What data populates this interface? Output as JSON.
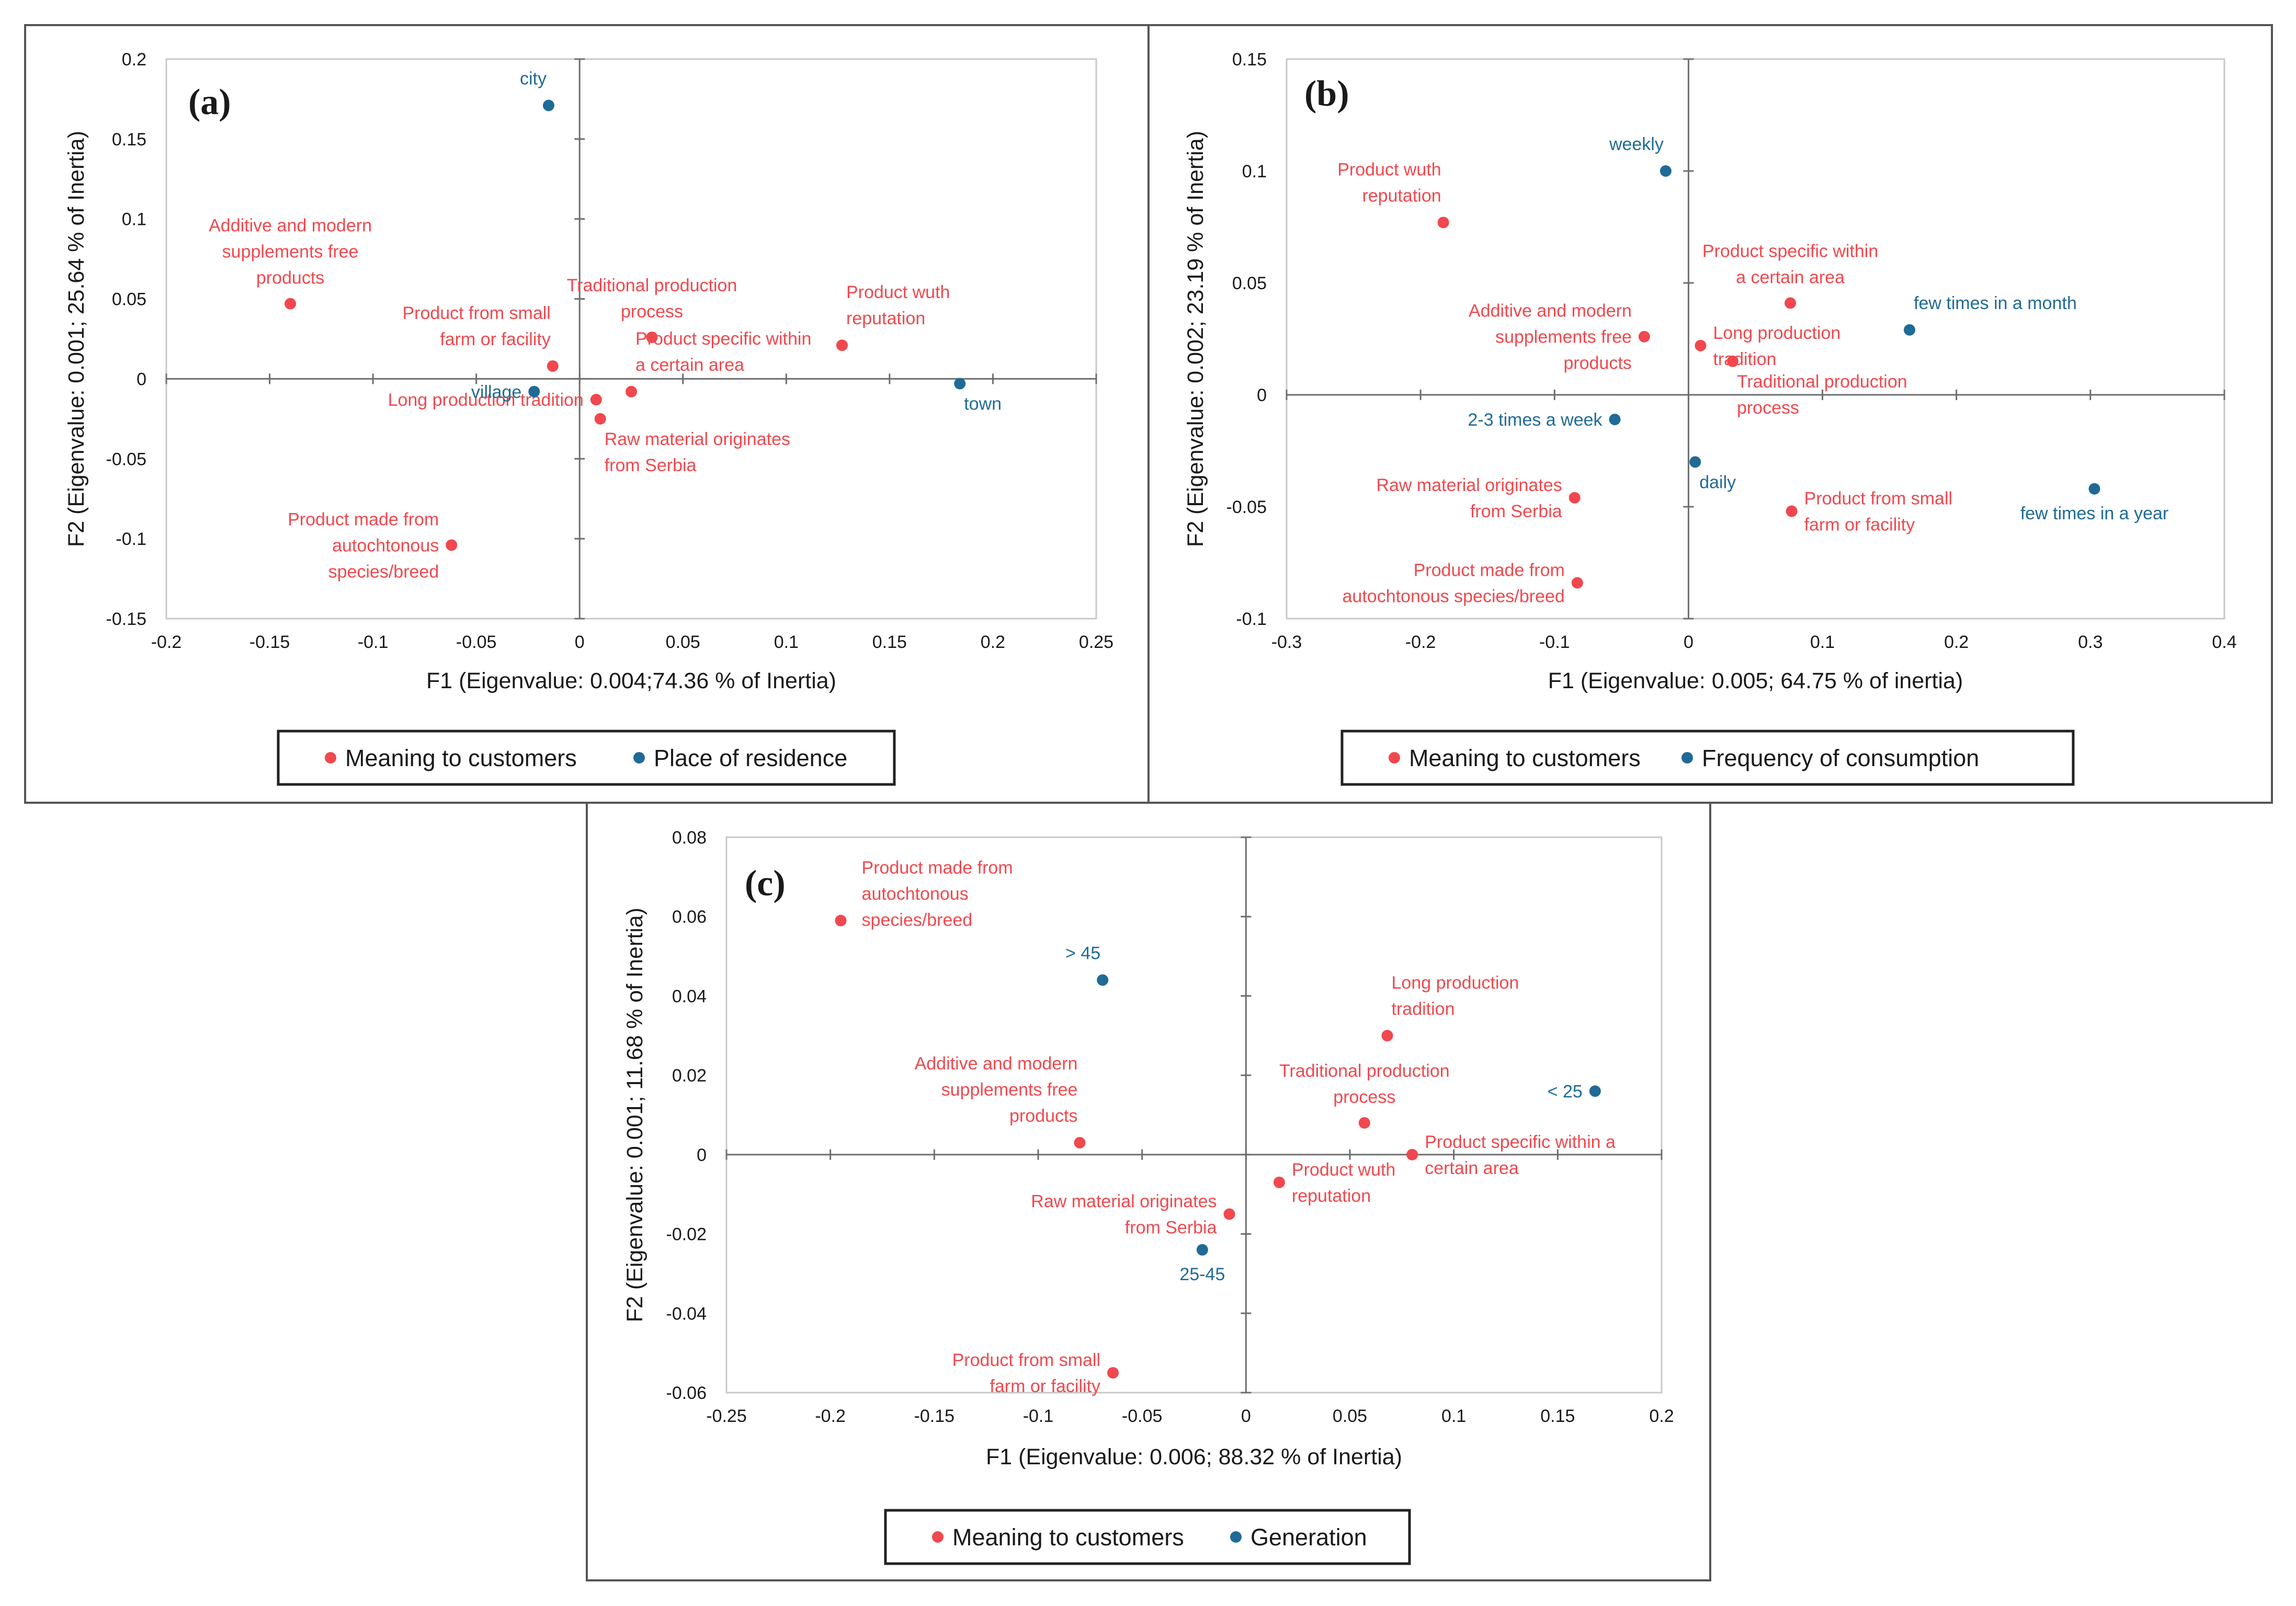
{
  "colors": {
    "meaning": "#f0484e",
    "group": "#1f6b96"
  },
  "chart_data": [
    {
      "type": "scatter",
      "panel": "(a)",
      "xlabel": "F1 (Eigenvalue: 0.004;74.36 % of Inertia)",
      "ylabel": "F2 (Eigenvalue: 0.001; 25.64 % of Inertia)",
      "xlim": [
        -0.2,
        0.25
      ],
      "ylim": [
        -0.15,
        0.2
      ],
      "xticks": [
        -0.2,
        -0.15,
        -0.1,
        -0.05,
        0,
        0.05,
        0.1,
        0.15,
        0.2,
        0.25
      ],
      "xtick_labels": [
        "-0.2",
        "-0.15",
        "-0.1",
        "-0.05",
        "0",
        "0.05",
        "0.1",
        "0.15",
        "0.2",
        "0.25"
      ],
      "yticks": [
        -0.15,
        -0.1,
        -0.05,
        0,
        0.05,
        0.1,
        0.15,
        0.2
      ],
      "ytick_labels": [
        "-0.15",
        "-0.1",
        "-0.05",
        "0",
        "0.05",
        "0.1",
        "0.15",
        "0.2"
      ],
      "legend": [
        "Meaning to customers",
        "Place of residence"
      ],
      "series": [
        {
          "name": "Meaning to customers",
          "points": [
            {
              "x": -0.14,
              "y": 0.047,
              "label": [
                "Additive and modern",
                "supplements free",
                "products"
              ],
              "pos": "above"
            },
            {
              "x": -0.013,
              "y": 0.008,
              "label": [
                "Product from small",
                "farm or facility"
              ],
              "pos": "above-left"
            },
            {
              "x": 0.008,
              "y": -0.013,
              "label": [
                "Long production tradition"
              ],
              "pos": "left"
            },
            {
              "x": 0.035,
              "y": 0.026,
              "label": [
                "Traditional production",
                "process"
              ],
              "pos": "above"
            },
            {
              "x": 0.025,
              "y": -0.008,
              "label": [
                "Product specific within",
                "a certain area"
              ],
              "pos": "above-right"
            },
            {
              "x": 0.01,
              "y": -0.025,
              "label": [
                "Raw material originates",
                "from Serbia"
              ],
              "pos": "below-right"
            },
            {
              "x": 0.127,
              "y": 0.021,
              "label": [
                "Product wuth",
                "reputation"
              ],
              "pos": "above-right"
            },
            {
              "x": -0.062,
              "y": -0.104,
              "label": [
                "Product made from",
                "autochtonous",
                "species/breed"
              ],
              "pos": "left-block"
            }
          ]
        },
        {
          "name": "Place of residence",
          "points": [
            {
              "x": -0.015,
              "y": 0.171,
              "label": [
                "city"
              ],
              "pos": "above-left"
            },
            {
              "x": -0.022,
              "y": -0.008,
              "label": [
                "village"
              ],
              "pos": "left"
            },
            {
              "x": 0.184,
              "y": -0.003,
              "label": [
                "town"
              ],
              "pos": "below-right"
            }
          ]
        }
      ]
    },
    {
      "type": "scatter",
      "panel": "(b)",
      "xlabel": "F1 (Eigenvalue:  0.005; 64.75 % of inertia)",
      "ylabel": "F2 (Eigenvalue: 0.002; 23.19 % of Inertia)",
      "xlim": [
        -0.3,
        0.4
      ],
      "ylim": [
        -0.1,
        0.15
      ],
      "xticks": [
        -0.3,
        -0.2,
        -0.1,
        0,
        0.1,
        0.2,
        0.3,
        0.4
      ],
      "xtick_labels": [
        "-0.3",
        "-0.2",
        "-0.1",
        "0",
        "0.1",
        "0.2",
        "0.3",
        "0.4"
      ],
      "yticks": [
        -0.1,
        -0.05,
        0,
        0.05,
        0.1,
        0.15
      ],
      "ytick_labels": [
        "-0.1",
        "-0.05",
        "0",
        "0.05",
        "0.1",
        "0.15"
      ],
      "legend": [
        "Meaning to customers",
        "Frequency of consumption"
      ],
      "series": [
        {
          "name": "Meaning to customers",
          "points": [
            {
              "x": -0.183,
              "y": 0.077,
              "label": [
                "Product wuth",
                "reputation"
              ],
              "pos": "above-left"
            },
            {
              "x": 0.076,
              "y": 0.041,
              "label": [
                "Product specific within",
                "a certain area"
              ],
              "pos": "above"
            },
            {
              "x": -0.033,
              "y": 0.026,
              "label": [
                "Additive and modern",
                "supplements free",
                "products"
              ],
              "pos": "left-block"
            },
            {
              "x": 0.009,
              "y": 0.022,
              "label": [
                "Long production",
                "tradition"
              ],
              "pos": "right-block"
            },
            {
              "x": 0.033,
              "y": 0.015,
              "label": [
                "Traditional production",
                "process"
              ],
              "pos": "below-right"
            },
            {
              "x": -0.085,
              "y": -0.046,
              "label": [
                "Raw material originates",
                "from Serbia"
              ],
              "pos": "left-block"
            },
            {
              "x": 0.077,
              "y": -0.052,
              "label": [
                "Product from small",
                "farm or facility"
              ],
              "pos": "right-block"
            },
            {
              "x": -0.083,
              "y": -0.084,
              "label": [
                "Product made from",
                "autochtonous species/breed"
              ],
              "pos": "left-block"
            }
          ]
        },
        {
          "name": "Frequency of consumption",
          "points": [
            {
              "x": -0.017,
              "y": 0.1,
              "label": [
                "weekly"
              ],
              "pos": "above-left"
            },
            {
              "x": 0.165,
              "y": 0.029,
              "label": [
                "few times in a month"
              ],
              "pos": "above-right"
            },
            {
              "x": -0.055,
              "y": -0.011,
              "label": [
                "2-3 times a week"
              ],
              "pos": "left"
            },
            {
              "x": 0.005,
              "y": -0.03,
              "label": [
                "daily"
              ],
              "pos": "below-right"
            },
            {
              "x": 0.303,
              "y": -0.042,
              "label": [
                "few times in a year"
              ],
              "pos": "below"
            }
          ]
        }
      ]
    },
    {
      "type": "scatter",
      "panel": "(c)",
      "xlabel": "F1 (Eigenvalue: 0.006; 88.32 % of Inertia)",
      "ylabel": "F2 (Eigenvalue: 0.001; 11.68 % of Inertia)",
      "xlim": [
        -0.25,
        0.2
      ],
      "ylim": [
        -0.06,
        0.08
      ],
      "xticks": [
        -0.25,
        -0.2,
        -0.15,
        -0.1,
        -0.05,
        0,
        0.05,
        0.1,
        0.15,
        0.2
      ],
      "xtick_labels": [
        "-0.25",
        "-0.2",
        "-0.15",
        "-0.1",
        "-0.05",
        "0",
        "0.05",
        "0.1",
        "0.15",
        "0.2"
      ],
      "yticks": [
        -0.06,
        -0.04,
        -0.02,
        0,
        0.02,
        0.04,
        0.06,
        0.08
      ],
      "ytick_labels": [
        "-0.06",
        "-0.04",
        "-0.02",
        "0",
        "0.02",
        "0.04",
        "0.06",
        "0.08"
      ],
      "legend": [
        "Meaning to customers",
        "Generation"
      ],
      "series": [
        {
          "name": "Meaning to customers",
          "points": [
            {
              "x": -0.195,
              "y": 0.059,
              "label": [
                "Product made from",
                "autochtonous",
                "species/breed"
              ],
              "pos": "right-block-up"
            },
            {
              "x": -0.08,
              "y": 0.003,
              "label": [
                "Additive and modern",
                "supplements free",
                "products"
              ],
              "pos": "above-left"
            },
            {
              "x": 0.068,
              "y": 0.03,
              "label": [
                "Long production",
                "tradition"
              ],
              "pos": "above-right"
            },
            {
              "x": 0.057,
              "y": 0.008,
              "label": [
                "Traditional production",
                "process"
              ],
              "pos": "above"
            },
            {
              "x": 0.08,
              "y": 0.0,
              "label": [
                "Product specific within a",
                "certain area"
              ],
              "pos": "right-block"
            },
            {
              "x": 0.016,
              "y": -0.007,
              "label": [
                "Product wuth",
                "reputation"
              ],
              "pos": "right-block"
            },
            {
              "x": -0.008,
              "y": -0.015,
              "label": [
                "Raw material originates",
                "from Serbia"
              ],
              "pos": "left-block"
            },
            {
              "x": -0.064,
              "y": -0.055,
              "label": [
                "Product from small",
                "farm or facility"
              ],
              "pos": "left-block"
            }
          ]
        },
        {
          "name": "Generation",
          "points": [
            {
              "x": -0.069,
              "y": 0.044,
              "label": [
                "> 45"
              ],
              "pos": "above-left"
            },
            {
              "x": 0.168,
              "y": 0.016,
              "label": [
                "< 25"
              ],
              "pos": "left"
            },
            {
              "x": -0.021,
              "y": -0.024,
              "label": [
                "25-45"
              ],
              "pos": "below"
            }
          ]
        }
      ]
    }
  ]
}
